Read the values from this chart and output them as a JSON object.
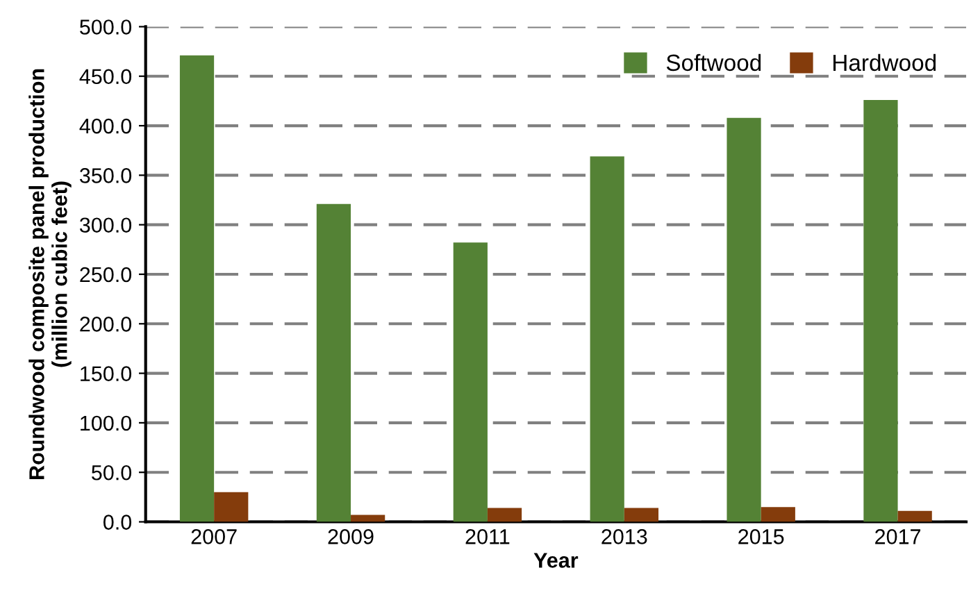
{
  "chart_data": {
    "type": "bar",
    "xlabel": "Year",
    "ylabel": "Roundwood composite panel production\n(million cubic feet)",
    "categories": [
      "2007",
      "2009",
      "2011",
      "2013",
      "2015",
      "2017"
    ],
    "series": [
      {
        "name": "Softwood",
        "color": "#548235",
        "values": [
          471,
          321,
          282,
          369,
          408,
          426
        ]
      },
      {
        "name": "Hardwood",
        "color": "#843c0c",
        "values": [
          30,
          7,
          14,
          14,
          15,
          11
        ]
      }
    ],
    "ylim": [
      0,
      500
    ],
    "yticks": [
      {
        "value": 0,
        "label": "0.0"
      },
      {
        "value": 50,
        "label": "50.0"
      },
      {
        "value": 100,
        "label": "100.0"
      },
      {
        "value": 150,
        "label": "150.0"
      },
      {
        "value": 200,
        "label": "200.0"
      },
      {
        "value": 250,
        "label": "250.0"
      },
      {
        "value": 300,
        "label": "300.0"
      },
      {
        "value": 350,
        "label": "350.0"
      },
      {
        "value": 400,
        "label": "400.0"
      },
      {
        "value": 450,
        "label": "450.0"
      },
      {
        "value": 500,
        "label": "500.0"
      }
    ],
    "grid": "y",
    "legend": "top right"
  }
}
